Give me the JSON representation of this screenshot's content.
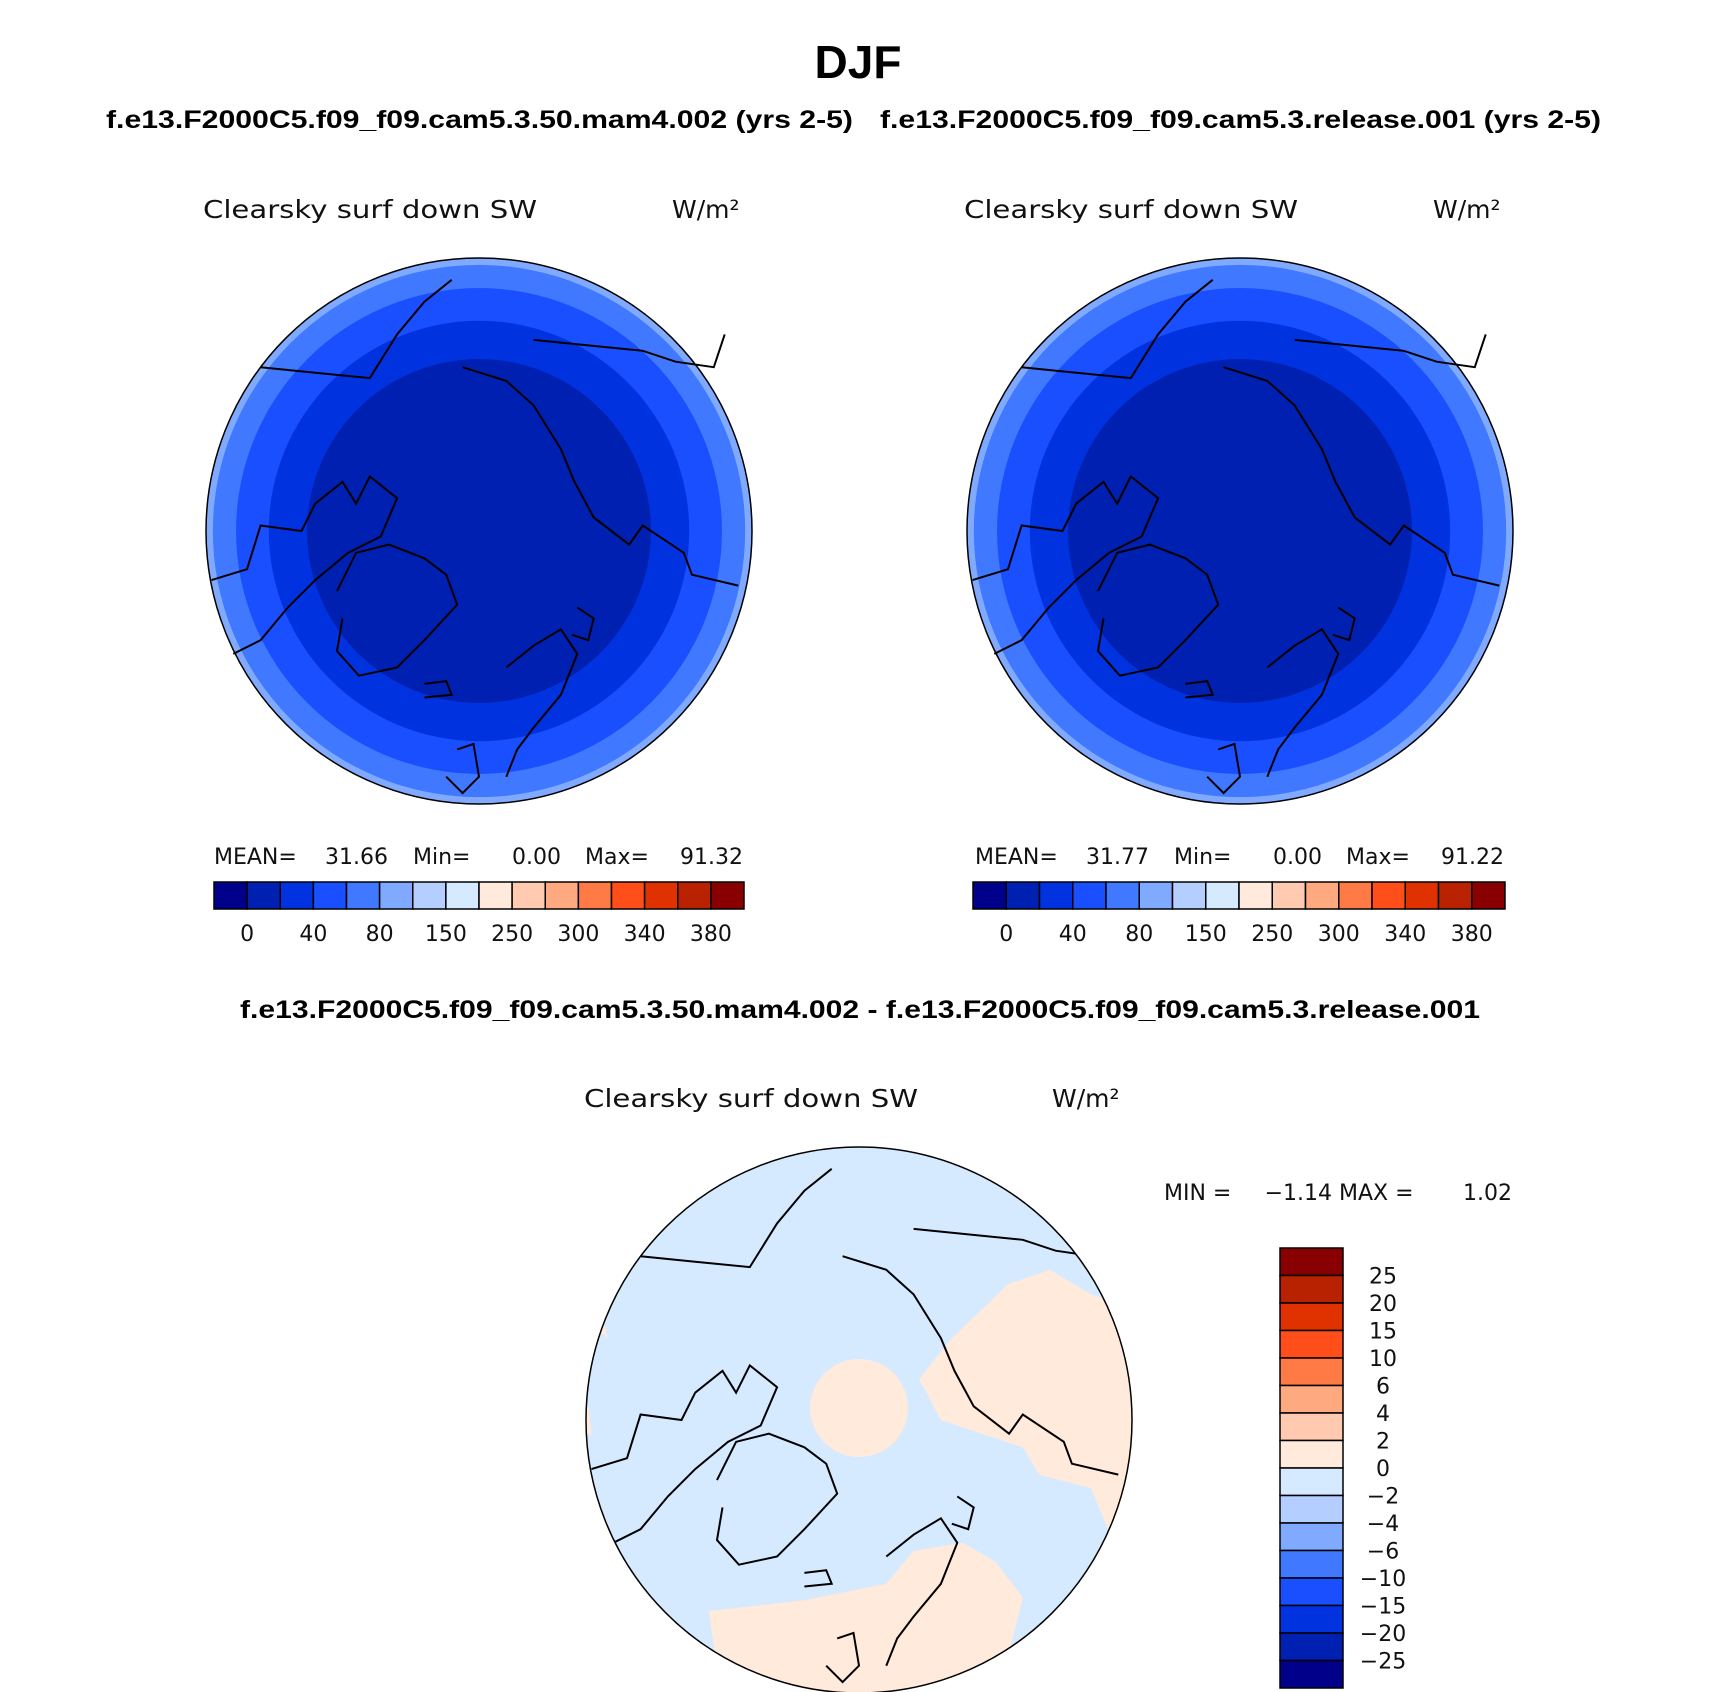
{
  "title": "DJF",
  "panels": [
    {
      "case_title": "f.e13.F2000C5.f09_f09.cam5.3.50.mam4.002 (yrs 2-5)",
      "variable": "Clearsky surf down SW",
      "units": "W/m²",
      "stats": {
        "mean_label": "MEAN=",
        "mean": "31.66",
        "min_label": "Min=",
        "min": "0.00",
        "max_label": "Max=",
        "max": "91.32"
      }
    },
    {
      "case_title": "f.e13.F2000C5.f09_f09.cam5.3.release.001 (yrs 2-5)",
      "variable": "Clearsky surf down SW",
      "units": "W/m²",
      "stats": {
        "mean_label": "MEAN=",
        "mean": "31.77",
        "min_label": "Min=",
        "min": "0.00",
        "max_label": "Max=",
        "max": "91.22"
      }
    }
  ],
  "difference": {
    "case_title": "f.e13.F2000C5.f09_f09.cam5.3.50.mam4.002 - f.e13.F2000C5.f09_f09.cam5.3.release.001",
    "variable": "Clearsky surf down SW",
    "units": "W/m²",
    "stats": {
      "min_label": "MIN =",
      "min": "−1.14",
      "max_label": "MAX =",
      "max": "1.02"
    }
  },
  "colors": [
    "#00008a",
    "#0020b2",
    "#0032e0",
    "#1a4fff",
    "#4079ff",
    "#80aaff",
    "#b3ceff",
    "#d6eaff",
    "#ffeadb",
    "#ffcab0",
    "#ffa981",
    "#ff7a45",
    "#ff4e1a",
    "#e03200",
    "#b82200",
    "#880000"
  ],
  "colorbar_abs_labels": [
    "0",
    "40",
    "80",
    "150",
    "250",
    "300",
    "340",
    "380"
  ],
  "colorbar_diff_labels": [
    "25",
    "20",
    "15",
    "10",
    "6",
    "4",
    "2",
    "0",
    "−2",
    "−4",
    "−6",
    "−10",
    "−15",
    "−20",
    "−25"
  ],
  "projection": "north polar stereographic",
  "map_fields": {
    "abs_bands_from_pole": [
      "#0020b2",
      "#0032e0",
      "#1a4fff",
      "#4079ff",
      "#80aaff"
    ],
    "diff_background": "#d6eaff",
    "diff_positive": "#ffeadb"
  }
}
